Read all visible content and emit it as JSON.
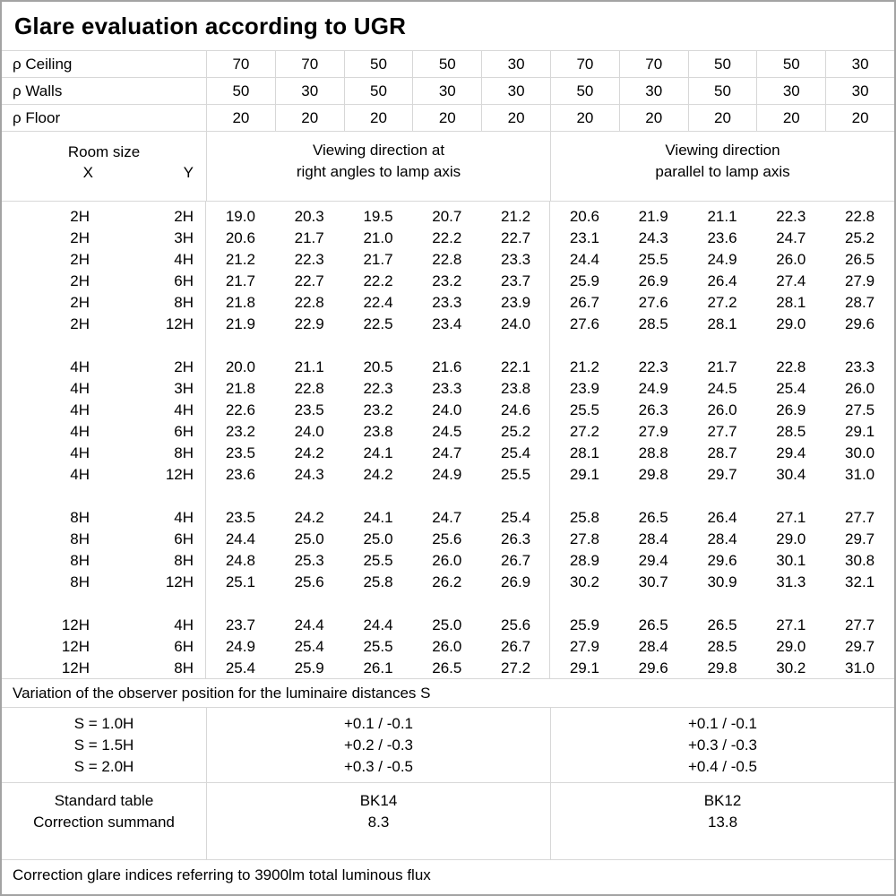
{
  "title": "Glare evaluation according to UGR",
  "reflectance": {
    "rows": [
      {
        "label": "ρ Ceiling",
        "values": [
          "70",
          "70",
          "50",
          "50",
          "30",
          "70",
          "70",
          "50",
          "50",
          "30"
        ]
      },
      {
        "label": "ρ Walls",
        "values": [
          "50",
          "30",
          "50",
          "30",
          "30",
          "50",
          "30",
          "50",
          "30",
          "30"
        ]
      },
      {
        "label": "ρ Floor",
        "values": [
          "20",
          "20",
          "20",
          "20",
          "20",
          "20",
          "20",
          "20",
          "20",
          "20"
        ]
      }
    ]
  },
  "room_size": {
    "title": "Room size",
    "x": "X",
    "y": "Y"
  },
  "groups": [
    {
      "line1": "Viewing direction at",
      "line2": "right angles to lamp axis"
    },
    {
      "line1": "Viewing direction",
      "line2": "parallel to lamp axis"
    }
  ],
  "ugr_table": {
    "blocks": [
      {
        "rows": [
          {
            "x": "2H",
            "y": "2H",
            "values": [
              "19.0",
              "20.3",
              "19.5",
              "20.7",
              "21.2",
              "20.6",
              "21.9",
              "21.1",
              "22.3",
              "22.8"
            ]
          },
          {
            "x": "2H",
            "y": "3H",
            "values": [
              "20.6",
              "21.7",
              "21.0",
              "22.2",
              "22.7",
              "23.1",
              "24.3",
              "23.6",
              "24.7",
              "25.2"
            ]
          },
          {
            "x": "2H",
            "y": "4H",
            "values": [
              "21.2",
              "22.3",
              "21.7",
              "22.8",
              "23.3",
              "24.4",
              "25.5",
              "24.9",
              "26.0",
              "26.5"
            ]
          },
          {
            "x": "2H",
            "y": "6H",
            "values": [
              "21.7",
              "22.7",
              "22.2",
              "23.2",
              "23.7",
              "25.9",
              "26.9",
              "26.4",
              "27.4",
              "27.9"
            ]
          },
          {
            "x": "2H",
            "y": "8H",
            "values": [
              "21.8",
              "22.8",
              "22.4",
              "23.3",
              "23.9",
              "26.7",
              "27.6",
              "27.2",
              "28.1",
              "28.7"
            ]
          },
          {
            "x": "2H",
            "y": "12H",
            "values": [
              "21.9",
              "22.9",
              "22.5",
              "23.4",
              "24.0",
              "27.6",
              "28.5",
              "28.1",
              "29.0",
              "29.6"
            ]
          }
        ]
      },
      {
        "rows": [
          {
            "x": "4H",
            "y": "2H",
            "values": [
              "20.0",
              "21.1",
              "20.5",
              "21.6",
              "22.1",
              "21.2",
              "22.3",
              "21.7",
              "22.8",
              "23.3"
            ]
          },
          {
            "x": "4H",
            "y": "3H",
            "values": [
              "21.8",
              "22.8",
              "22.3",
              "23.3",
              "23.8",
              "23.9",
              "24.9",
              "24.5",
              "25.4",
              "26.0"
            ]
          },
          {
            "x": "4H",
            "y": "4H",
            "values": [
              "22.6",
              "23.5",
              "23.2",
              "24.0",
              "24.6",
              "25.5",
              "26.3",
              "26.0",
              "26.9",
              "27.5"
            ]
          },
          {
            "x": "4H",
            "y": "6H",
            "values": [
              "23.2",
              "24.0",
              "23.8",
              "24.5",
              "25.2",
              "27.2",
              "27.9",
              "27.7",
              "28.5",
              "29.1"
            ]
          },
          {
            "x": "4H",
            "y": "8H",
            "values": [
              "23.5",
              "24.2",
              "24.1",
              "24.7",
              "25.4",
              "28.1",
              "28.8",
              "28.7",
              "29.4",
              "30.0"
            ]
          },
          {
            "x": "4H",
            "y": "12H",
            "values": [
              "23.6",
              "24.3",
              "24.2",
              "24.9",
              "25.5",
              "29.1",
              "29.8",
              "29.7",
              "30.4",
              "31.0"
            ]
          }
        ]
      },
      {
        "rows": [
          {
            "x": "8H",
            "y": "4H",
            "values": [
              "23.5",
              "24.2",
              "24.1",
              "24.7",
              "25.4",
              "25.8",
              "26.5",
              "26.4",
              "27.1",
              "27.7"
            ]
          },
          {
            "x": "8H",
            "y": "6H",
            "values": [
              "24.4",
              "25.0",
              "25.0",
              "25.6",
              "26.3",
              "27.8",
              "28.4",
              "28.4",
              "29.0",
              "29.7"
            ]
          },
          {
            "x": "8H",
            "y": "8H",
            "values": [
              "24.8",
              "25.3",
              "25.5",
              "26.0",
              "26.7",
              "28.9",
              "29.4",
              "29.6",
              "30.1",
              "30.8"
            ]
          },
          {
            "x": "8H",
            "y": "12H",
            "values": [
              "25.1",
              "25.6",
              "25.8",
              "26.2",
              "26.9",
              "30.2",
              "30.7",
              "30.9",
              "31.3",
              "32.1"
            ]
          }
        ]
      },
      {
        "rows": [
          {
            "x": "12H",
            "y": "4H",
            "values": [
              "23.7",
              "24.4",
              "24.4",
              "25.0",
              "25.6",
              "25.9",
              "26.5",
              "26.5",
              "27.1",
              "27.7"
            ]
          },
          {
            "x": "12H",
            "y": "6H",
            "values": [
              "24.9",
              "25.4",
              "25.5",
              "26.0",
              "26.7",
              "27.9",
              "28.4",
              "28.5",
              "29.0",
              "29.7"
            ]
          },
          {
            "x": "12H",
            "y": "8H",
            "values": [
              "25.4",
              "25.9",
              "26.1",
              "26.5",
              "27.2",
              "29.1",
              "29.6",
              "29.8",
              "30.2",
              "31.0"
            ]
          }
        ]
      }
    ]
  },
  "s_variation": {
    "note": "Variation of the observer position for the luminaire distances S",
    "rows": [
      {
        "s": "S = 1.0H",
        "right_angles": "+0.1 / -0.1",
        "parallel": "+0.1 / -0.1"
      },
      {
        "s": "S = 1.5H",
        "right_angles": "+0.2 / -0.3",
        "parallel": "+0.3 / -0.3"
      },
      {
        "s": "S = 2.0H",
        "right_angles": "+0.3 / -0.5",
        "parallel": "+0.4 / -0.5"
      }
    ]
  },
  "standard": {
    "row_labels": [
      "Standard table",
      "Correction summand"
    ],
    "right_angles": [
      "BK14",
      "8.3"
    ],
    "parallel": [
      "BK12",
      "13.8"
    ]
  },
  "footer_note": "Correction glare indices referring to 3900lm total luminous flux"
}
